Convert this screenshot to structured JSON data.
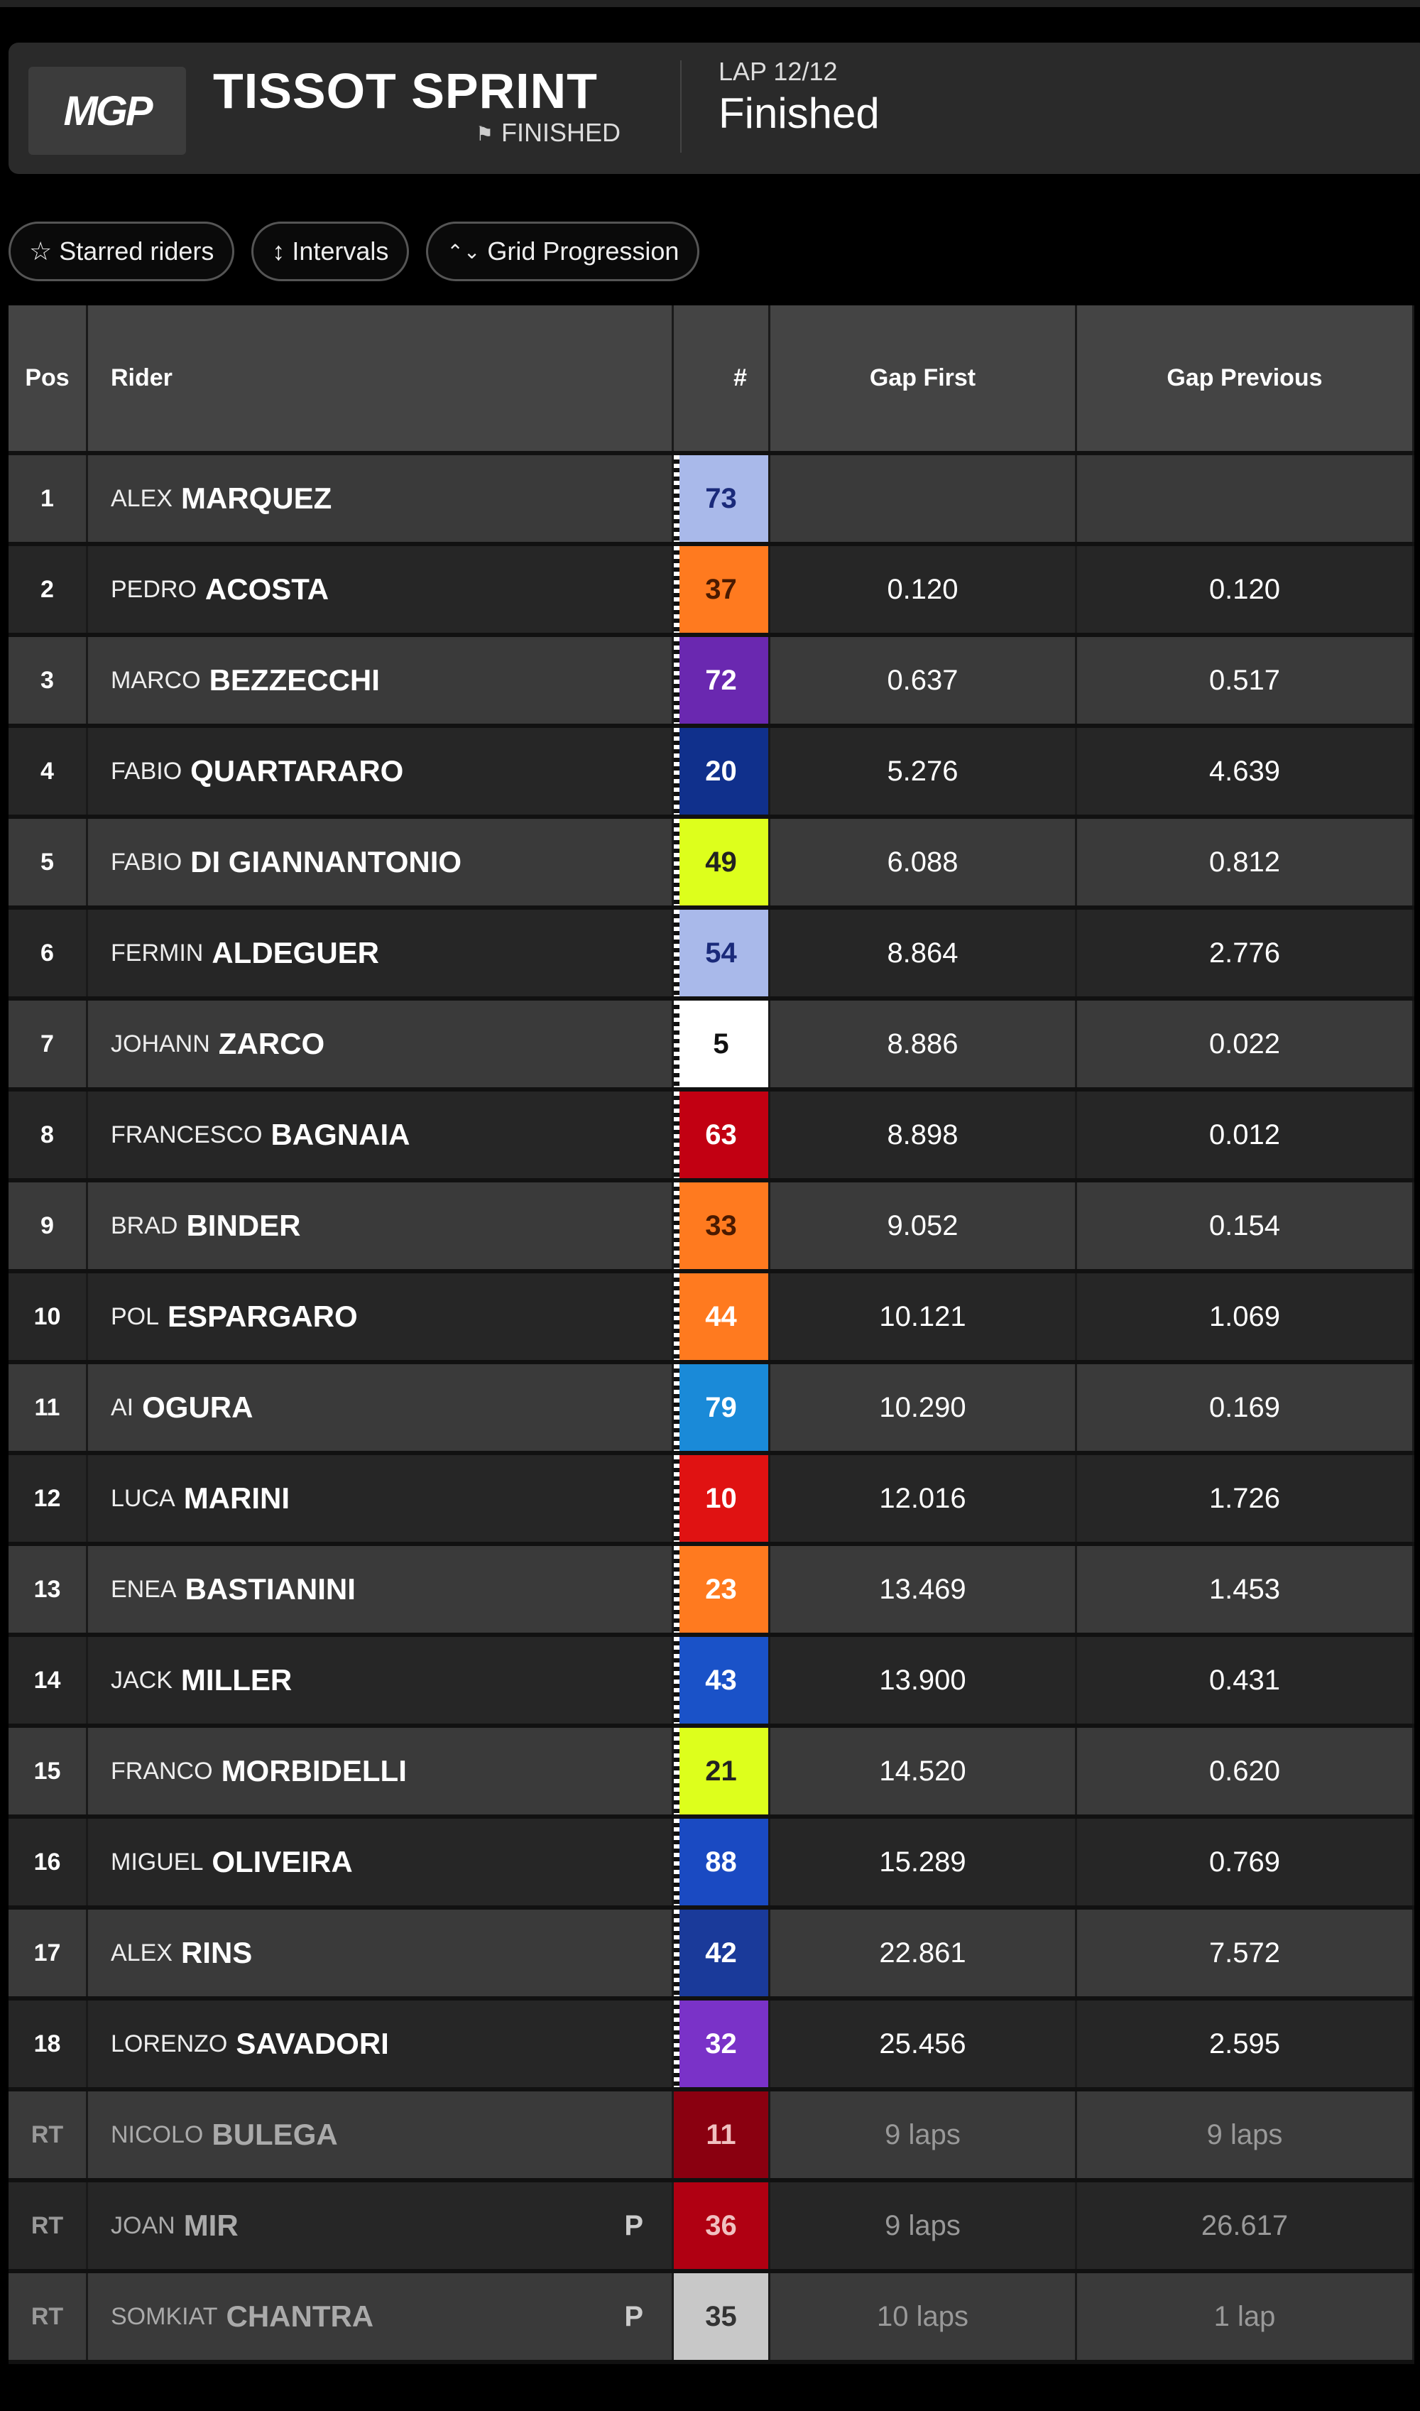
{
  "header": {
    "logo": "MGP",
    "title": "TISSOT SPRINT",
    "subtitle": "FINISHED",
    "lap": "LAP 12/12",
    "status": "Finished"
  },
  "filters": [
    {
      "icon": "star-icon",
      "label": "Starred riders"
    },
    {
      "icon": "up-down-arrow-icon",
      "label": "Intervals"
    },
    {
      "icon": "chevron-up-down-icon",
      "label": "Grid Progression"
    }
  ],
  "columns": {
    "pos": "Pos",
    "rider": "Rider",
    "num": "#",
    "gap_first": "Gap First",
    "gap_previous": "Gap Previous"
  },
  "rows": [
    {
      "pos": "1",
      "first": "ALEX",
      "last": "MARQUEZ",
      "num": "73",
      "color": "#a9b9ea",
      "text": "#1a2a7a",
      "gf": "",
      "gp": ""
    },
    {
      "pos": "2",
      "first": "PEDRO",
      "last": "ACOSTA",
      "num": "37",
      "color": "#ff7a1f",
      "text": "#4a1a00",
      "gf": "0.120",
      "gp": "0.120"
    },
    {
      "pos": "3",
      "first": "MARCO",
      "last": "BEZZECCHI",
      "num": "72",
      "color": "#6a28b0",
      "text": "#ffffff",
      "gf": "0.637",
      "gp": "0.517"
    },
    {
      "pos": "4",
      "first": "FABIO",
      "last": "QUARTARARO",
      "num": "20",
      "color": "#10308c",
      "text": "#ffffff",
      "gf": "5.276",
      "gp": "4.639"
    },
    {
      "pos": "5",
      "first": "FABIO",
      "last": "DI GIANNANTONIO",
      "num": "49",
      "color": "#ddff1c",
      "text": "#222222",
      "gf": "6.088",
      "gp": "0.812"
    },
    {
      "pos": "6",
      "first": "FERMIN",
      "last": "ALDEGUER",
      "num": "54",
      "color": "#a9b9ea",
      "text": "#1a2a7a",
      "gf": "8.864",
      "gp": "2.776"
    },
    {
      "pos": "7",
      "first": "JOHANN",
      "last": "ZARCO",
      "num": "5",
      "color": "#ffffff",
      "text": "#111111",
      "gf": "8.886",
      "gp": "0.022"
    },
    {
      "pos": "8",
      "first": "FRANCESCO",
      "last": "BAGNAIA",
      "num": "63",
      "color": "#c20012",
      "text": "#ffffff",
      "gf": "8.898",
      "gp": "0.012"
    },
    {
      "pos": "9",
      "first": "BRAD",
      "last": "BINDER",
      "num": "33",
      "color": "#ff7a1f",
      "text": "#4a1a00",
      "gf": "9.052",
      "gp": "0.154"
    },
    {
      "pos": "10",
      "first": "POL",
      "last": "ESPARGARO",
      "num": "44",
      "color": "#ff7a1f",
      "text": "#ffffff",
      "gf": "10.121",
      "gp": "1.069"
    },
    {
      "pos": "11",
      "first": "AI",
      "last": "OGURA",
      "num": "79",
      "color": "#1a8ad8",
      "text": "#ffffff",
      "gf": "10.290",
      "gp": "0.169"
    },
    {
      "pos": "12",
      "first": "LUCA",
      "last": "MARINI",
      "num": "10",
      "color": "#e01212",
      "text": "#ffffff",
      "gf": "12.016",
      "gp": "1.726"
    },
    {
      "pos": "13",
      "first": "ENEA",
      "last": "BASTIANINI",
      "num": "23",
      "color": "#ff7a1f",
      "text": "#ffffff",
      "gf": "13.469",
      "gp": "1.453"
    },
    {
      "pos": "14",
      "first": "JACK",
      "last": "MILLER",
      "num": "43",
      "color": "#1a52c8",
      "text": "#ffffff",
      "gf": "13.900",
      "gp": "0.431"
    },
    {
      "pos": "15",
      "first": "FRANCO",
      "last": "MORBIDELLI",
      "num": "21",
      "color": "#ddff1c",
      "text": "#222222",
      "gf": "14.520",
      "gp": "0.620"
    },
    {
      "pos": "16",
      "first": "MIGUEL",
      "last": "OLIVEIRA",
      "num": "88",
      "color": "#1a4ac2",
      "text": "#ffffff",
      "gf": "15.289",
      "gp": "0.769"
    },
    {
      "pos": "17",
      "first": "ALEX",
      "last": "RINS",
      "num": "42",
      "color": "#1a3a9a",
      "text": "#ffffff",
      "gf": "22.861",
      "gp": "7.572"
    },
    {
      "pos": "18",
      "first": "LORENZO",
      "last": "SAVADORI",
      "num": "32",
      "color": "#7a32c8",
      "text": "#ffffff",
      "gf": "25.456",
      "gp": "2.595"
    },
    {
      "pos": "RT",
      "first": "NICOLO",
      "last": "BULEGA",
      "num": "11",
      "color": "#8a0010",
      "text": "#f0c0c0",
      "gf": "9 laps",
      "gp": "9 laps",
      "retired": true
    },
    {
      "pos": "RT",
      "first": "JOAN",
      "last": "MIR",
      "num": "36",
      "color": "#b00012",
      "text": "#f0c0c0",
      "gf": "9 laps",
      "gp": "26.617",
      "retired": true,
      "flag": "P"
    },
    {
      "pos": "RT",
      "first": "SOMKIAT",
      "last": "CHANTRA",
      "num": "35",
      "color": "#c8c8c8",
      "text": "#333333",
      "gf": "10 laps",
      "gp": "1 lap",
      "retired": true,
      "flag": "P"
    }
  ]
}
